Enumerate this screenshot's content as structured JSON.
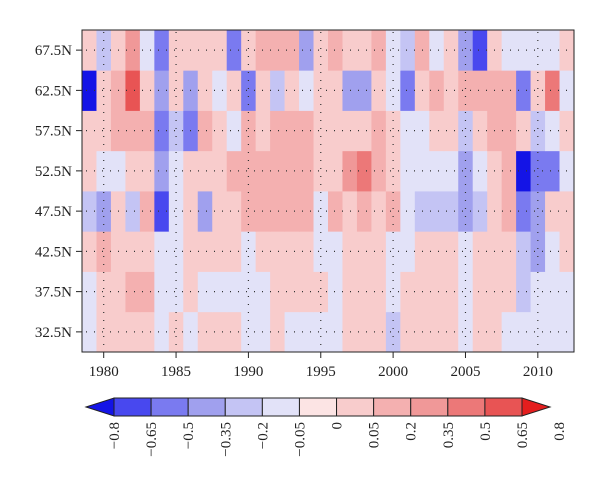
{
  "chart_data": {
    "type": "heatmap",
    "x_start_year": 1979,
    "x_end_year": 2012,
    "x_ticks": [
      1980,
      1985,
      1990,
      1995,
      2000,
      2005,
      2010
    ],
    "x_tick_labels": [
      "1980",
      "1985",
      "1990",
      "1995",
      "2000",
      "2005",
      "2010"
    ],
    "y_rows_latitude": [
      32.5,
      37.5,
      42.5,
      47.5,
      52.5,
      57.5,
      62.5,
      67.5
    ],
    "y_tick_labels": [
      "32.5N",
      "37.5N",
      "42.5N",
      "47.5N",
      "52.5N",
      "57.5N",
      "62.5N",
      "67.5N"
    ],
    "colorbar": {
      "levels": [
        -0.8,
        -0.65,
        -0.5,
        -0.35,
        -0.2,
        -0.05,
        0,
        0.05,
        0.2,
        0.35,
        0.5,
        0.65,
        0.8
      ],
      "labels": [
        "−0.8",
        "−0.65",
        "−0.5",
        "−0.35",
        "−0.2",
        "−0.05",
        "0",
        "0.05",
        "0.2",
        "0.35",
        "0.5",
        "0.65",
        "0.8"
      ],
      "colors": [
        "#1414e6",
        "#4848ef",
        "#7a7af0",
        "#a0a0ee",
        "#c4c4f4",
        "#e2e2f8",
        "#fce4e4",
        "#f8cccc",
        "#f4b0b0",
        "#f09898",
        "#ec7878",
        "#e85454",
        "#e41e1e"
      ]
    },
    "values": [
      [
        -0.05,
        0.05,
        0.05,
        0.05,
        0.05,
        -0.05,
        0.05,
        -0.05,
        0.05,
        0.05,
        0.05,
        -0.05,
        -0.05,
        0.05,
        -0.05,
        -0.05,
        -0.05,
        -0.05,
        0.05,
        0.05,
        0.05,
        -0.2,
        0.05,
        0.05,
        0.05,
        0.05,
        -0.05,
        0.05,
        0.05,
        -0.05,
        -0.05,
        -0.05,
        -0.05,
        -0.05
      ],
      [
        -0.05,
        0.05,
        0.05,
        0.2,
        0.2,
        -0.05,
        -0.05,
        0.05,
        -0.05,
        -0.05,
        -0.05,
        -0.05,
        -0.05,
        0.05,
        0.05,
        0.05,
        0.05,
        -0.05,
        0.05,
        0.05,
        0.05,
        -0.05,
        0.05,
        0.05,
        0.05,
        0.05,
        -0.05,
        0.05,
        0.05,
        0.05,
        -0.2,
        -0.05,
        -0.05,
        -0.05
      ],
      [
        0.05,
        0.2,
        0.05,
        0.05,
        0.05,
        -0.05,
        -0.05,
        0.05,
        0.05,
        0.05,
        0.05,
        -0.05,
        0.05,
        0.05,
        0.05,
        0.05,
        -0.05,
        -0.05,
        0.05,
        0.05,
        0.05,
        -0.05,
        -0.05,
        0.05,
        0.05,
        0.05,
        -0.05,
        0.05,
        0.05,
        0.05,
        -0.2,
        -0.35,
        -0.05,
        0.05
      ],
      [
        -0.2,
        -0.35,
        0.05,
        -0.2,
        0.2,
        -0.65,
        -0.05,
        0.05,
        -0.35,
        0.05,
        0.05,
        0.2,
        0.2,
        0.2,
        0.2,
        0.2,
        -0.05,
        0.2,
        0.05,
        0.2,
        0.05,
        0.2,
        -0.05,
        -0.2,
        -0.2,
        -0.2,
        -0.35,
        -0.2,
        0.05,
        0.2,
        -0.5,
        -0.35,
        0.05,
        0.05
      ],
      [
        0.05,
        -0.05,
        -0.05,
        0.05,
        0.05,
        -0.35,
        -0.05,
        0.05,
        0.05,
        0.05,
        0.2,
        0.2,
        0.2,
        0.2,
        0.2,
        0.2,
        0.05,
        0.05,
        0.35,
        0.5,
        0.2,
        0.05,
        -0.05,
        -0.05,
        -0.05,
        -0.05,
        -0.35,
        -0.05,
        0.05,
        0.2,
        -0.8,
        -0.5,
        -0.5,
        -0.05
      ],
      [
        0.05,
        0.05,
        0.2,
        0.2,
        0.2,
        -0.5,
        -0.2,
        -0.5,
        0.2,
        0.05,
        -0.05,
        0.2,
        0.05,
        0.2,
        0.2,
        0.2,
        0.05,
        0.05,
        0.05,
        0.05,
        0.2,
        0.05,
        -0.05,
        -0.05,
        0.05,
        0.05,
        -0.2,
        0.05,
        0.2,
        0.2,
        0.05,
        -0.2,
        -0.05,
        0.05
      ],
      [
        -0.8,
        0.05,
        0.2,
        0.65,
        0.05,
        -0.35,
        0.05,
        -0.35,
        0.05,
        -0.05,
        0.05,
        -0.5,
        0.05,
        -0.2,
        0.05,
        -0.05,
        0.05,
        0.05,
        -0.35,
        -0.35,
        0.05,
        -0.05,
        -0.5,
        0.05,
        0.2,
        0.05,
        0.2,
        0.2,
        0.2,
        0.2,
        -0.5,
        0.05,
        0.5,
        -0.05
      ],
      [
        0.05,
        -0.2,
        0.05,
        0.35,
        -0.05,
        -0.5,
        0.05,
        0.05,
        0.05,
        0.05,
        -0.5,
        0.05,
        0.2,
        0.2,
        0.2,
        -0.35,
        0.05,
        0.2,
        0.05,
        0.05,
        0.2,
        -0.05,
        -0.2,
        0.2,
        -0.05,
        0.05,
        -0.35,
        -0.65,
        0.05,
        -0.05,
        -0.05,
        -0.05,
        -0.05,
        0.05
      ]
    ]
  }
}
